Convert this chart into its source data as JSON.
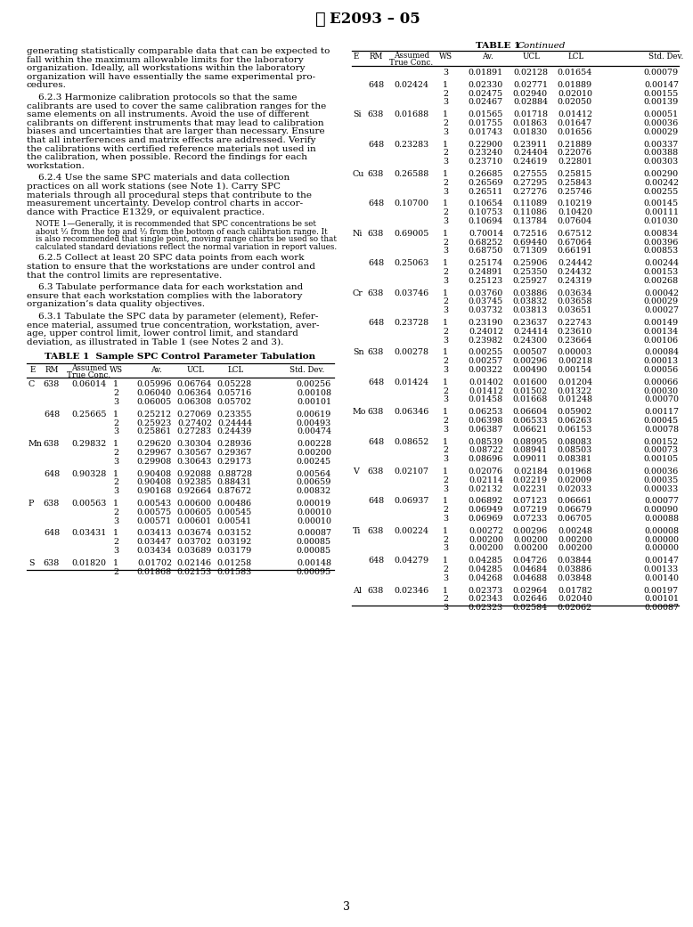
{
  "title": "E2093 – 05",
  "page_num": "3",
  "table1_title": "TABLE 1  Sample SPC Control Parameter Tabulation",
  "table1_data": [
    [
      "C",
      "638",
      "0.06014",
      "1",
      "0.05996",
      "0.06764",
      "0.05228",
      "0.00256"
    ],
    [
      "",
      "",
      "",
      "2",
      "0.06040",
      "0.06364",
      "0.05716",
      "0.00108"
    ],
    [
      "",
      "",
      "",
      "3",
      "0.06005",
      "0.06308",
      "0.05702",
      "0.00101"
    ],
    [
      "",
      "648",
      "0.25665",
      "1",
      "0.25212",
      "0.27069",
      "0.23355",
      "0.00619"
    ],
    [
      "",
      "",
      "",
      "2",
      "0.25923",
      "0.27402",
      "0.24444",
      "0.00493"
    ],
    [
      "",
      "",
      "",
      "3",
      "0.25861",
      "0.27283",
      "0.24439",
      "0.00474"
    ],
    [
      "Mn",
      "638",
      "0.29832",
      "1",
      "0.29620",
      "0.30304",
      "0.28936",
      "0.00228"
    ],
    [
      "",
      "",
      "",
      "2",
      "0.29967",
      "0.30567",
      "0.29367",
      "0.00200"
    ],
    [
      "",
      "",
      "",
      "3",
      "0.29908",
      "0.30643",
      "0.29173",
      "0.00245"
    ],
    [
      "",
      "648",
      "0.90328",
      "1",
      "0.90408",
      "0.92088",
      "0.88728",
      "0.00564"
    ],
    [
      "",
      "",
      "",
      "2",
      "0.90408",
      "0.92385",
      "0.88431",
      "0.00659"
    ],
    [
      "",
      "",
      "",
      "3",
      "0.90168",
      "0.92664",
      "0.87672",
      "0.00832"
    ],
    [
      "P",
      "638",
      "0.00563",
      "1",
      "0.00543",
      "0.00600",
      "0.00486",
      "0.00019"
    ],
    [
      "",
      "",
      "",
      "2",
      "0.00575",
      "0.00605",
      "0.00545",
      "0.00010"
    ],
    [
      "",
      "",
      "",
      "3",
      "0.00571",
      "0.00601",
      "0.00541",
      "0.00010"
    ],
    [
      "",
      "648",
      "0.03431",
      "1",
      "0.03413",
      "0.03674",
      "0.03152",
      "0.00087"
    ],
    [
      "",
      "",
      "",
      "2",
      "0.03447",
      "0.03702",
      "0.03192",
      "0.00085"
    ],
    [
      "",
      "",
      "",
      "3",
      "0.03434",
      "0.03689",
      "0.03179",
      "0.00085"
    ],
    [
      "S",
      "638",
      "0.01820",
      "1",
      "0.01702",
      "0.02146",
      "0.01258",
      "0.00148"
    ],
    [
      "",
      "",
      "",
      "2",
      "0.01868",
      "0.02153",
      "0.01583",
      "0.00095"
    ]
  ],
  "table2_title": "TABLE 1  Continued",
  "table2_data": [
    [
      "",
      "",
      "",
      "3",
      "0.01891",
      "0.02128",
      "0.01654",
      "0.00079"
    ],
    [
      "",
      "648",
      "0.02424",
      "1",
      "0.02330",
      "0.02771",
      "0.01889",
      "0.00147"
    ],
    [
      "",
      "",
      "",
      "2",
      "0.02475",
      "0.02940",
      "0.02010",
      "0.00155"
    ],
    [
      "",
      "",
      "",
      "3",
      "0.02467",
      "0.02884",
      "0.02050",
      "0.00139"
    ],
    [
      "Si",
      "638",
      "0.01688",
      "1",
      "0.01565",
      "0.01718",
      "0.01412",
      "0.00051"
    ],
    [
      "",
      "",
      "",
      "2",
      "0.01755",
      "0.01863",
      "0.01647",
      "0.00036"
    ],
    [
      "",
      "",
      "",
      "3",
      "0.01743",
      "0.01830",
      "0.01656",
      "0.00029"
    ],
    [
      "",
      "648",
      "0.23283",
      "1",
      "0.22900",
      "0.23911",
      "0.21889",
      "0.00337"
    ],
    [
      "",
      "",
      "",
      "2",
      "0.23240",
      "0.24404",
      "0.22076",
      "0.00388"
    ],
    [
      "",
      "",
      "",
      "3",
      "0.23710",
      "0.24619",
      "0.22801",
      "0.00303"
    ],
    [
      "Cu",
      "638",
      "0.26588",
      "1",
      "0.26685",
      "0.27555",
      "0.25815",
      "0.00290"
    ],
    [
      "",
      "",
      "",
      "2",
      "0.26569",
      "0.27295",
      "0.25843",
      "0.00242"
    ],
    [
      "",
      "",
      "",
      "3",
      "0.26511",
      "0.27276",
      "0.25746",
      "0.00255"
    ],
    [
      "",
      "648",
      "0.10700",
      "1",
      "0.10654",
      "0.11089",
      "0.10219",
      "0.00145"
    ],
    [
      "",
      "",
      "",
      "2",
      "0.10753",
      "0.11086",
      "0.10420",
      "0.00111"
    ],
    [
      "",
      "",
      "",
      "3",
      "0.10694",
      "0.13784",
      "0.07604",
      "0.01030"
    ],
    [
      "Ni",
      "638",
      "0.69005",
      "1",
      "0.70014",
      "0.72516",
      "0.67512",
      "0.00834"
    ],
    [
      "",
      "",
      "",
      "2",
      "0.68252",
      "0.69440",
      "0.67064",
      "0.00396"
    ],
    [
      "",
      "",
      "",
      "3",
      "0.68750",
      "0.71309",
      "0.66191",
      "0.00853"
    ],
    [
      "",
      "648",
      "0.25063",
      "1",
      "0.25174",
      "0.25906",
      "0.24442",
      "0.00244"
    ],
    [
      "",
      "",
      "",
      "2",
      "0.24891",
      "0.25350",
      "0.24432",
      "0.00153"
    ],
    [
      "",
      "",
      "",
      "3",
      "0.25123",
      "0.25927",
      "0.24319",
      "0.00268"
    ],
    [
      "Cr",
      "638",
      "0.03746",
      "1",
      "0.03760",
      "0.03886",
      "0.03634",
      "0.00042"
    ],
    [
      "",
      "",
      "",
      "2",
      "0.03745",
      "0.03832",
      "0.03658",
      "0.00029"
    ],
    [
      "",
      "",
      "",
      "3",
      "0.03732",
      "0.03813",
      "0.03651",
      "0.00027"
    ],
    [
      "",
      "648",
      "0.23728",
      "1",
      "0.23190",
      "0.23637",
      "0.22743",
      "0.00149"
    ],
    [
      "",
      "",
      "",
      "2",
      "0.24012",
      "0.24414",
      "0.23610",
      "0.00134"
    ],
    [
      "",
      "",
      "",
      "3",
      "0.23982",
      "0.24300",
      "0.23664",
      "0.00106"
    ],
    [
      "Sn",
      "638",
      "0.00278",
      "1",
      "0.00255",
      "0.00507",
      "0.00003",
      "0.00084"
    ],
    [
      "",
      "",
      "",
      "2",
      "0.00257",
      "0.00296",
      "0.00218",
      "0.00013"
    ],
    [
      "",
      "",
      "",
      "3",
      "0.00322",
      "0.00490",
      "0.00154",
      "0.00056"
    ],
    [
      "",
      "648",
      "0.01424",
      "1",
      "0.01402",
      "0.01600",
      "0.01204",
      "0.00066"
    ],
    [
      "",
      "",
      "",
      "2",
      "0.01412",
      "0.01502",
      "0.01322",
      "0.00030"
    ],
    [
      "",
      "",
      "",
      "3",
      "0.01458",
      "0.01668",
      "0.01248",
      "0.00070"
    ],
    [
      "Mo",
      "638",
      "0.06346",
      "1",
      "0.06253",
      "0.06604",
      "0.05902",
      "0.00117"
    ],
    [
      "",
      "",
      "",
      "2",
      "0.06398",
      "0.06533",
      "0.06263",
      "0.00045"
    ],
    [
      "",
      "",
      "",
      "3",
      "0.06387",
      "0.06621",
      "0.06153",
      "0.00078"
    ],
    [
      "",
      "648",
      "0.08652",
      "1",
      "0.08539",
      "0.08995",
      "0.08083",
      "0.00152"
    ],
    [
      "",
      "",
      "",
      "2",
      "0.08722",
      "0.08941",
      "0.08503",
      "0.00073"
    ],
    [
      "",
      "",
      "",
      "3",
      "0.08696",
      "0.09011",
      "0.08381",
      "0.00105"
    ],
    [
      "V",
      "638",
      "0.02107",
      "1",
      "0.02076",
      "0.02184",
      "0.01968",
      "0.00036"
    ],
    [
      "",
      "",
      "",
      "2",
      "0.02114",
      "0.02219",
      "0.02009",
      "0.00035"
    ],
    [
      "",
      "",
      "",
      "3",
      "0.02132",
      "0.02231",
      "0.02033",
      "0.00033"
    ],
    [
      "",
      "648",
      "0.06937",
      "1",
      "0.06892",
      "0.07123",
      "0.06661",
      "0.00077"
    ],
    [
      "",
      "",
      "",
      "2",
      "0.06949",
      "0.07219",
      "0.06679",
      "0.00090"
    ],
    [
      "",
      "",
      "",
      "3",
      "0.06969",
      "0.07233",
      "0.06705",
      "0.00088"
    ],
    [
      "Ti",
      "638",
      "0.00224",
      "1",
      "0.00272",
      "0.00296",
      "0.00248",
      "0.00008"
    ],
    [
      "",
      "",
      "",
      "2",
      "0.00200",
      "0.00200",
      "0.00200",
      "0.00000"
    ],
    [
      "",
      "",
      "",
      "3",
      "0.00200",
      "0.00200",
      "0.00200",
      "0.00000"
    ],
    [
      "",
      "648",
      "0.04279",
      "1",
      "0.04285",
      "0.04726",
      "0.03844",
      "0.00147"
    ],
    [
      "",
      "",
      "",
      "2",
      "0.04285",
      "0.04684",
      "0.03886",
      "0.00133"
    ],
    [
      "",
      "",
      "",
      "3",
      "0.04268",
      "0.04688",
      "0.03848",
      "0.00140"
    ],
    [
      "Al",
      "638",
      "0.02346",
      "1",
      "0.02373",
      "0.02964",
      "0.01782",
      "0.00197"
    ],
    [
      "",
      "",
      "",
      "2",
      "0.02343",
      "0.02646",
      "0.02040",
      "0.00101"
    ],
    [
      "",
      "",
      "",
      "3",
      "0.02323",
      "0.02584",
      "0.02062",
      "0.00087"
    ]
  ],
  "left_paragraphs": [
    [
      "generating statistically comparable data that can be expected to",
      "fall within the maximum allowable limits for the laboratory",
      "organization. Ideally, all workstations within the laboratory",
      "organization will have essentially the same experimental pro-",
      "cedures."
    ],
    [
      "    6.2.3 Harmonize calibration protocols so that the same",
      "calibrants are used to cover the same calibration ranges for the",
      "same elements on all instruments. Avoid the use of different",
      "calibrants on different instruments that may lead to calibration",
      "biases and uncertainties that are larger than necessary. Ensure",
      "that all interferences and matrix effects are addressed. Verify",
      "the calibrations with certified reference materials not used in",
      "the calibration, when possible. Record the findings for each",
      "workstation."
    ],
    [
      "    6.2.4 Use the same SPC materials and data collection",
      "practices on all work stations (see Note 1). Carry SPC",
      "materials through all procedural steps that contribute to the",
      "measurement uncertainty. Develop control charts in accor-",
      "dance with Practice E1329, or equivalent practice."
    ],
    [
      "NOTE 1—Generally, it is recommended that SPC concentrations be set",
      "about ⅓ from the top and ⅓ from the bottom of each calibration range. It",
      "is also recommended that single point, moving range charts be used so that",
      "calculated standard deviations reflect the normal variation in report values."
    ],
    [
      "    6.2.5 Collect at least 20 SPC data points from each work",
      "station to ensure that the workstations are under control and",
      "that the control limits are representative."
    ],
    [
      "    6.3 Tabulate performance data for each workstation and",
      "ensure that each workstation complies with the laboratory",
      "organization’s data quality objectives."
    ],
    [
      "    6.3.1 Tabulate the SPC data by parameter (element), Refer-",
      "ence material, assumed true concentration, workstation, aver-",
      "age, upper control limit, lower control limit, and standard",
      "deviation, as illustrated in Table 1 (see Notes 2 and 3)."
    ]
  ],
  "note_idx": 3,
  "bg_color": "#ffffff"
}
